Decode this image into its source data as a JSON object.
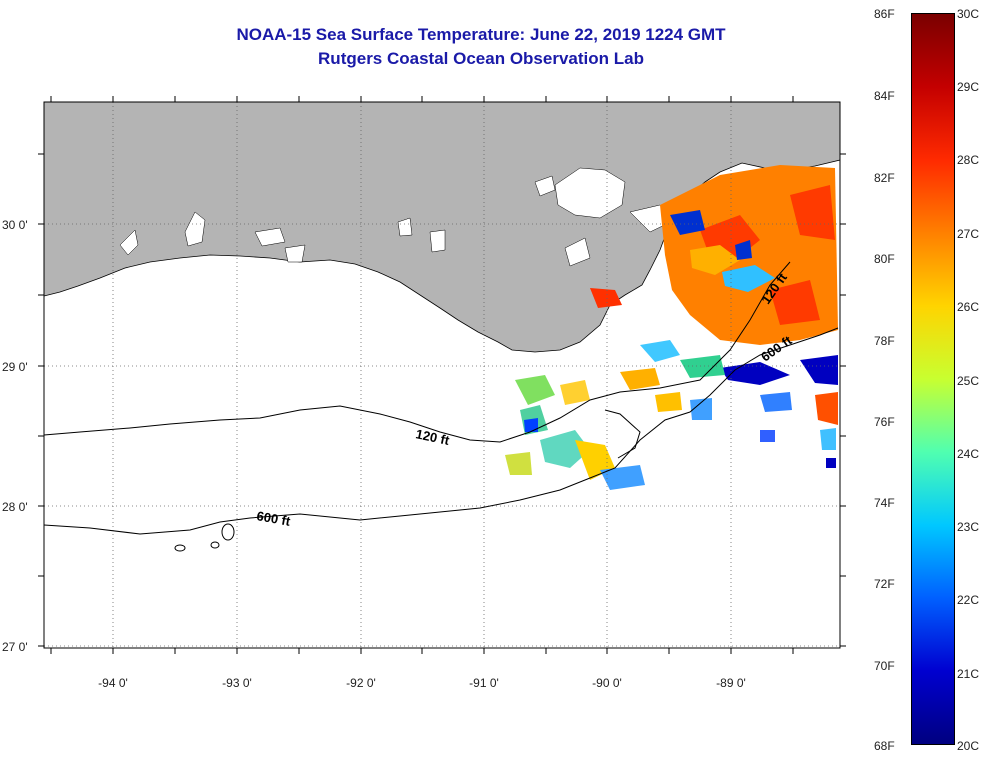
{
  "title_line1": "NOAA-15 Sea Surface Temperature:  June 22, 2019 1224 GMT",
  "title_line2": "Rutgers Coastal Ocean Observation Lab",
  "map": {
    "lon_labels": [
      "-94 0'",
      "-93 0'",
      "-92 0'",
      "-91 0'",
      "-90 0'",
      "-89 0'"
    ],
    "lat_labels": [
      "30 0'",
      "29 0'",
      "28 0'",
      "27 0'"
    ],
    "contours": [
      {
        "label": "120 ft"
      },
      {
        "label": "600 ft"
      },
      {
        "label": "120 ft"
      },
      {
        "label": "600 ft"
      }
    ],
    "land_color": "#b4b4b4"
  },
  "colorbar": {
    "f_labels": [
      "86F",
      "84F",
      "82F",
      "80F",
      "78F",
      "76F",
      "74F",
      "72F",
      "70F",
      "68F"
    ],
    "c_labels": [
      "30C",
      "29C",
      "28C",
      "27C",
      "26C",
      "25C",
      "24C",
      "23C",
      "22C",
      "21C",
      "20C"
    ],
    "colors_top_to_bottom": [
      "#7a0000",
      "#c40000",
      "#ff2a00",
      "#ff8000",
      "#ffd400",
      "#c8ff30",
      "#50ffb0",
      "#00c8ff",
      "#0060ff",
      "#0000d0",
      "#000080"
    ]
  }
}
